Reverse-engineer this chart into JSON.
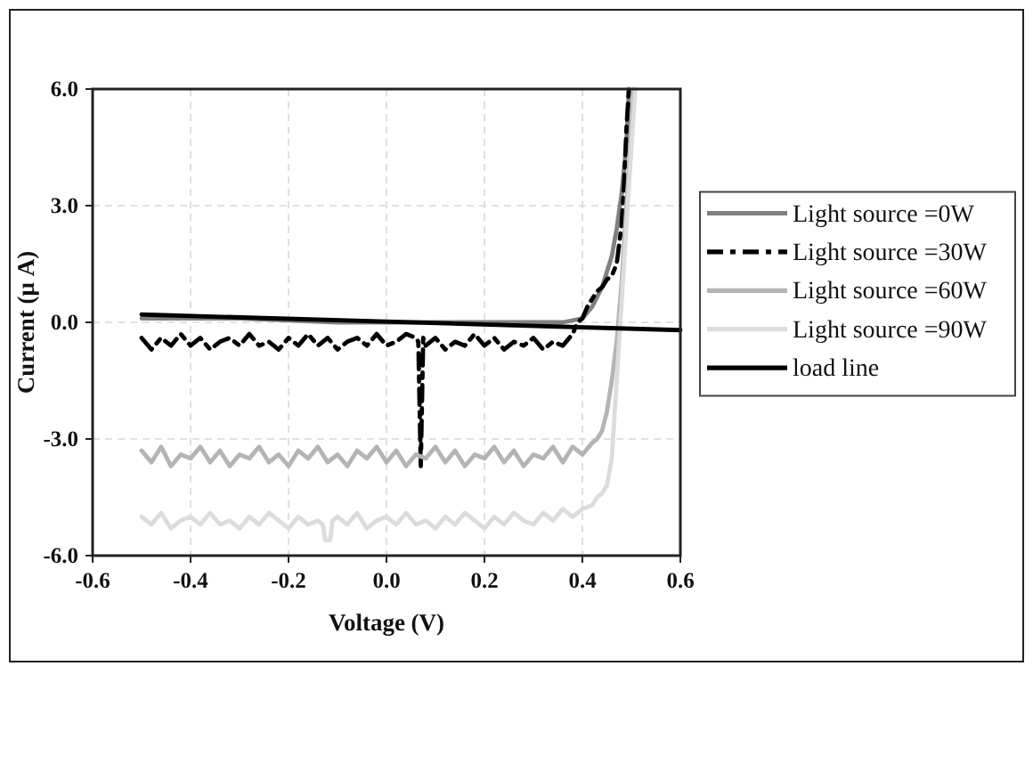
{
  "chart_data": {
    "type": "line",
    "xlabel": "Voltage (V)",
    "ylabel": "Current (μ A)",
    "xlim": [
      -0.6,
      0.6
    ],
    "xticks": [
      -0.6,
      -0.4,
      -0.2,
      {
        "value": 0,
        "label": "0.0"
      },
      0.2,
      0.4,
      0.6
    ],
    "ylim": [
      -6,
      6
    ],
    "yticks": [
      {
        "value": -6,
        "label": "-6.0"
      },
      {
        "value": -3,
        "label": "-3.0"
      },
      {
        "value": 0,
        "label": "0.0"
      },
      {
        "value": 3,
        "label": "3.0"
      },
      {
        "value": 6,
        "label": "6.0"
      }
    ],
    "grid": true,
    "legend": "right",
    "series": [
      {
        "name": "Light source =0W",
        "color": "#808080",
        "x": [
          -0.5,
          -0.3,
          -0.1,
          0.1,
          0.3,
          0.36,
          0.4,
          0.42,
          0.44,
          0.46,
          0.47,
          0.48,
          0.49,
          0.495
        ],
        "values": [
          0.1,
          0.1,
          0.0,
          0.0,
          0.0,
          0.0,
          0.1,
          0.4,
          0.9,
          1.7,
          2.4,
          3.3,
          4.6,
          6.0
        ]
      },
      {
        "name": "Light source =30W",
        "color": "#000000",
        "line_style": "dashed",
        "x": [
          -0.5,
          -0.48,
          -0.46,
          -0.44,
          -0.42,
          -0.4,
          -0.38,
          -0.36,
          -0.34,
          -0.32,
          -0.3,
          -0.28,
          -0.26,
          -0.24,
          -0.22,
          -0.2,
          -0.18,
          -0.16,
          -0.14,
          -0.12,
          -0.1,
          -0.08,
          -0.06,
          -0.04,
          -0.02,
          0,
          0.02,
          0.04,
          0.06,
          0.065,
          0.07,
          0.075,
          0.08,
          0.1,
          0.12,
          0.14,
          0.16,
          0.18,
          0.2,
          0.22,
          0.24,
          0.26,
          0.28,
          0.3,
          0.32,
          0.34,
          0.36,
          0.38,
          0.39,
          0.4,
          0.41,
          0.42,
          0.43,
          0.44,
          0.45,
          0.46,
          0.47,
          0.48,
          0.485,
          0.49,
          0.495
        ],
        "values": [
          -0.4,
          -0.7,
          -0.4,
          -0.6,
          -0.3,
          -0.6,
          -0.4,
          -0.7,
          -0.5,
          -0.4,
          -0.6,
          -0.3,
          -0.6,
          -0.5,
          -0.7,
          -0.4,
          -0.6,
          -0.3,
          -0.6,
          -0.4,
          -0.7,
          -0.5,
          -0.4,
          -0.6,
          -0.3,
          -0.6,
          -0.5,
          -0.3,
          -0.4,
          -0.5,
          -3.7,
          -0.4,
          -0.6,
          -0.4,
          -0.7,
          -0.5,
          -0.6,
          -0.3,
          -0.6,
          -0.4,
          -0.7,
          -0.5,
          -0.6,
          -0.4,
          -0.7,
          -0.5,
          -0.6,
          -0.3,
          0.0,
          0.1,
          0.4,
          0.6,
          0.8,
          0.9,
          1.1,
          1.2,
          1.5,
          2.5,
          3.5,
          5.0,
          6.0
        ]
      },
      {
        "name": "Light source =60W",
        "color": "#b4b4b4",
        "x": [
          -0.5,
          -0.48,
          -0.46,
          -0.44,
          -0.42,
          -0.4,
          -0.38,
          -0.36,
          -0.34,
          -0.32,
          -0.3,
          -0.28,
          -0.26,
          -0.24,
          -0.22,
          -0.2,
          -0.18,
          -0.16,
          -0.14,
          -0.12,
          -0.1,
          -0.08,
          -0.06,
          -0.04,
          -0.02,
          0,
          0.02,
          0.04,
          0.06,
          0.08,
          0.1,
          0.12,
          0.14,
          0.16,
          0.18,
          0.2,
          0.22,
          0.24,
          0.26,
          0.28,
          0.3,
          0.32,
          0.34,
          0.36,
          0.38,
          0.4,
          0.42,
          0.43,
          0.44,
          0.45,
          0.46,
          0.47,
          0.48,
          0.49,
          0.5,
          0.505
        ],
        "values": [
          -3.3,
          -3.6,
          -3.2,
          -3.7,
          -3.4,
          -3.5,
          -3.2,
          -3.6,
          -3.3,
          -3.7,
          -3.4,
          -3.5,
          -3.2,
          -3.6,
          -3.4,
          -3.7,
          -3.3,
          -3.5,
          -3.2,
          -3.6,
          -3.4,
          -3.7,
          -3.3,
          -3.5,
          -3.2,
          -3.6,
          -3.3,
          -3.7,
          -3.4,
          -3.5,
          -3.2,
          -3.6,
          -3.3,
          -3.7,
          -3.4,
          -3.5,
          -3.2,
          -3.6,
          -3.3,
          -3.7,
          -3.4,
          -3.5,
          -3.2,
          -3.6,
          -3.2,
          -3.4,
          -3.1,
          -3.0,
          -2.8,
          -2.3,
          -1.5,
          -0.5,
          1.0,
          3.0,
          5.0,
          6.0
        ]
      },
      {
        "name": "Light source =90W",
        "color": "#dcdcdc",
        "x": [
          -0.5,
          -0.48,
          -0.46,
          -0.44,
          -0.42,
          -0.4,
          -0.38,
          -0.36,
          -0.34,
          -0.32,
          -0.3,
          -0.28,
          -0.26,
          -0.24,
          -0.22,
          -0.2,
          -0.18,
          -0.16,
          -0.14,
          -0.13,
          -0.125,
          -0.115,
          -0.11,
          -0.1,
          -0.08,
          -0.06,
          -0.04,
          -0.02,
          0,
          0.02,
          0.04,
          0.06,
          0.08,
          0.1,
          0.12,
          0.14,
          0.16,
          0.18,
          0.2,
          0.22,
          0.24,
          0.26,
          0.28,
          0.3,
          0.32,
          0.34,
          0.36,
          0.38,
          0.4,
          0.42,
          0.43,
          0.44,
          0.45,
          0.46,
          0.47,
          0.48,
          0.49,
          0.5,
          0.508
        ],
        "values": [
          -5.0,
          -5.2,
          -4.9,
          -5.3,
          -5.1,
          -5.0,
          -5.2,
          -4.9,
          -5.2,
          -5.1,
          -5.3,
          -5.0,
          -5.2,
          -4.9,
          -5.1,
          -5.3,
          -5.0,
          -5.2,
          -5.1,
          -5.2,
          -5.6,
          -5.6,
          -5.1,
          -5.0,
          -5.2,
          -4.9,
          -5.3,
          -5.1,
          -5.0,
          -5.2,
          -4.9,
          -5.2,
          -5.1,
          -5.3,
          -5.0,
          -5.2,
          -4.9,
          -5.1,
          -5.3,
          -5.0,
          -5.2,
          -4.9,
          -5.1,
          -5.2,
          -4.9,
          -5.1,
          -4.8,
          -5.0,
          -4.8,
          -4.7,
          -4.5,
          -4.4,
          -4.2,
          -3.5,
          -1.5,
          0.5,
          2.5,
          4.5,
          6.0
        ]
      },
      {
        "name": "load line",
        "color": "#000000",
        "x": [
          -0.5,
          0.6
        ],
        "values": [
          0.2,
          -0.2
        ]
      }
    ]
  }
}
